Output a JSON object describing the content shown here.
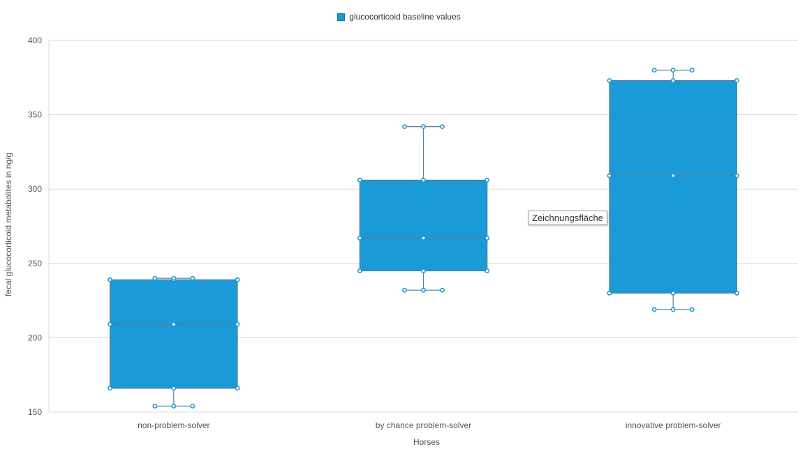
{
  "chart_data": {
    "type": "box",
    "legend": {
      "label": "glucocorticoid baseline values",
      "placement": "top-center"
    },
    "xlabel": "Horses",
    "ylabel": "fecal glucocorticoid metabolites in ng/g",
    "ylim": [
      150,
      400
    ],
    "yticks": [
      150,
      200,
      250,
      300,
      350,
      400
    ],
    "grid": true,
    "color": "#1a9ad6",
    "categories": [
      "non-problem-solver",
      "by chance problem-solver",
      "innovative problem-solver"
    ],
    "boxes": [
      {
        "min": 154,
        "q1": 166,
        "median": 209,
        "q3": 239,
        "max": 240
      },
      {
        "min": 232,
        "q1": 245,
        "median": 267,
        "q3": 306,
        "max": 342
      },
      {
        "min": 219,
        "q1": 230,
        "median": 309,
        "q3": 373,
        "max": 380
      }
    ]
  },
  "tooltip": {
    "text": "Zeichnungsfläche"
  }
}
